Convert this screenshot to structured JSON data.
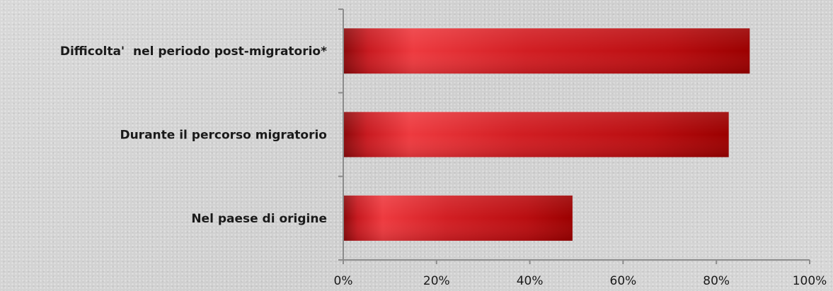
{
  "chart_data": {
    "type": "bar",
    "orientation": "horizontal",
    "categories": [
      "Difficolta'  nel periodo post-migratorio*",
      "Durante il percorso migratorio",
      "Nel paese di origine"
    ],
    "values": [
      0.87,
      0.825,
      0.49
    ],
    "xlim": [
      0,
      1
    ],
    "xticks": [
      "0%",
      "20%",
      "40%",
      "60%",
      "80%",
      "100%"
    ],
    "grid": false,
    "legend": "none",
    "bar_color_light": "#ee3a3f",
    "bar_color_dark": "#9b0000",
    "axis_color": "#8c8c8c",
    "text_color": "#1a1a1a"
  }
}
